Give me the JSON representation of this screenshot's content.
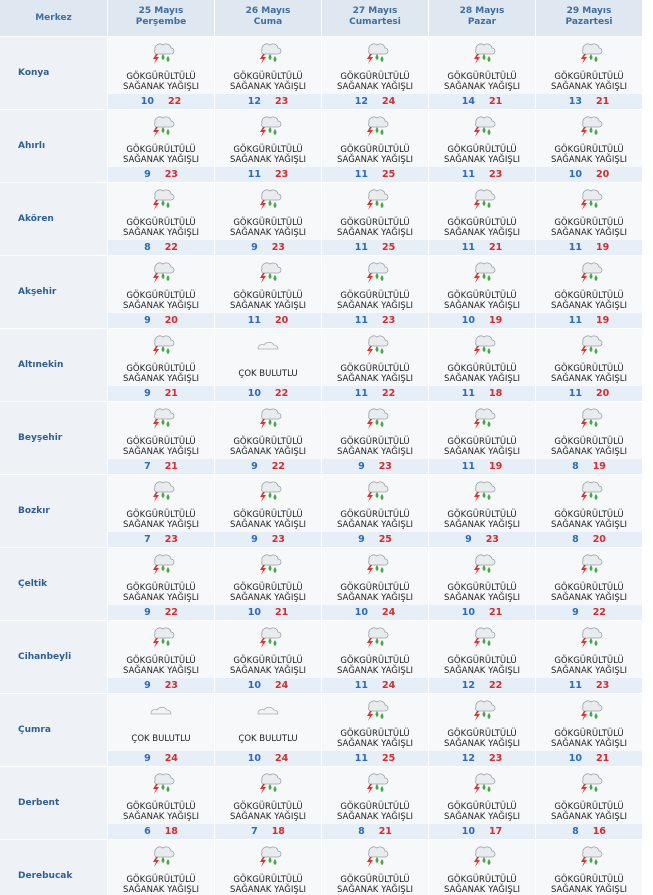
{
  "header": {
    "first": "Merkez",
    "days": [
      {
        "date": "25 Mayıs",
        "day": "Perşembe"
      },
      {
        "date": "26 Mayıs",
        "day": "Cuma"
      },
      {
        "date": "27 Mayıs",
        "day": "Cumartesi"
      },
      {
        "date": "28 Mayıs",
        "day": "Pazar"
      },
      {
        "date": "29 Mayıs",
        "day": "Pazartesi"
      }
    ]
  },
  "rows": [
    {
      "city": "Konya",
      "cells": [
        {
          "condition": "GÖKGÜRÜLTÜLÜ SAĞANAK YAĞIŞLI",
          "low": 10,
          "high": 22
        },
        {
          "condition": "GÖKGÜRÜLTÜLÜ SAĞANAK YAĞIŞLI",
          "low": 12,
          "high": 23
        },
        {
          "condition": "GÖKGÜRÜLTÜLÜ SAĞANAK YAĞIŞLI",
          "low": 12,
          "high": 24
        },
        {
          "condition": "GÖKGÜRÜLTÜLÜ SAĞANAK YAĞIŞLI",
          "low": 14,
          "high": 21
        },
        {
          "condition": "GÖKGÜRÜLTÜLÜ SAĞANAK YAĞIŞLI",
          "low": 13,
          "high": 21
        }
      ]
    },
    {
      "city": "Ahırlı",
      "cells": [
        {
          "condition": "GÖKGÜRÜLTÜLÜ SAĞANAK YAĞIŞLI",
          "low": 9,
          "high": 23
        },
        {
          "condition": "GÖKGÜRÜLTÜLÜ SAĞANAK YAĞIŞLI",
          "low": 11,
          "high": 23
        },
        {
          "condition": "GÖKGÜRÜLTÜLÜ SAĞANAK YAĞIŞLI",
          "low": 11,
          "high": 25
        },
        {
          "condition": "GÖKGÜRÜLTÜLÜ SAĞANAK YAĞIŞLI",
          "low": 11,
          "high": 23
        },
        {
          "condition": "GÖKGÜRÜLTÜLÜ SAĞANAK YAĞIŞLI",
          "low": 10,
          "high": 20
        }
      ]
    },
    {
      "city": "Akören",
      "cells": [
        {
          "condition": "GÖKGÜRÜLTÜLÜ SAĞANAK YAĞIŞLI",
          "low": 8,
          "high": 22
        },
        {
          "condition": "GÖKGÜRÜLTÜLÜ SAĞANAK YAĞIŞLI",
          "low": 9,
          "high": 23
        },
        {
          "condition": "GÖKGÜRÜLTÜLÜ SAĞANAK YAĞIŞLI",
          "low": 11,
          "high": 25
        },
        {
          "condition": "GÖKGÜRÜLTÜLÜ SAĞANAK YAĞIŞLI",
          "low": 11,
          "high": 21
        },
        {
          "condition": "GÖKGÜRÜLTÜLÜ SAĞANAK YAĞIŞLI",
          "low": 11,
          "high": 19
        }
      ]
    },
    {
      "city": "Akşehir",
      "cells": [
        {
          "condition": "GÖKGÜRÜLTÜLÜ SAĞANAK YAĞIŞLI",
          "low": 9,
          "high": 20
        },
        {
          "condition": "GÖKGÜRÜLTÜLÜ SAĞANAK YAĞIŞLI",
          "low": 11,
          "high": 20
        },
        {
          "condition": "GÖKGÜRÜLTÜLÜ SAĞANAK YAĞIŞLI",
          "low": 11,
          "high": 23
        },
        {
          "condition": "GÖKGÜRÜLTÜLÜ SAĞANAK YAĞIŞLI",
          "low": 10,
          "high": 19
        },
        {
          "condition": "GÖKGÜRÜLTÜLÜ SAĞANAK YAĞIŞLI",
          "low": 11,
          "high": 19
        }
      ]
    },
    {
      "city": "Altınekin",
      "cells": [
        {
          "condition": "GÖKGÜRÜLTÜLÜ SAĞANAK YAĞIŞLI",
          "low": 9,
          "high": 21
        },
        {
          "condition": "ÇOK BULUTLU",
          "low": 10,
          "high": 22
        },
        {
          "condition": "GÖKGÜRÜLTÜLÜ SAĞANAK YAĞIŞLI",
          "low": 11,
          "high": 22
        },
        {
          "condition": "GÖKGÜRÜLTÜLÜ SAĞANAK YAĞIŞLI",
          "low": 11,
          "high": 18
        },
        {
          "condition": "GÖKGÜRÜLTÜLÜ SAĞANAK YAĞIŞLI",
          "low": 11,
          "high": 20
        }
      ]
    },
    {
      "city": "Beyşehir",
      "cells": [
        {
          "condition": "GÖKGÜRÜLTÜLÜ SAĞANAK YAĞIŞLI",
          "low": 7,
          "high": 21
        },
        {
          "condition": "GÖKGÜRÜLTÜLÜ SAĞANAK YAĞIŞLI",
          "low": 9,
          "high": 22
        },
        {
          "condition": "GÖKGÜRÜLTÜLÜ SAĞANAK YAĞIŞLI",
          "low": 9,
          "high": 23
        },
        {
          "condition": "GÖKGÜRÜLTÜLÜ SAĞANAK YAĞIŞLI",
          "low": 11,
          "high": 19
        },
        {
          "condition": "GÖKGÜRÜLTÜLÜ SAĞANAK YAĞIŞLI",
          "low": 8,
          "high": 19
        }
      ]
    },
    {
      "city": "Bozkır",
      "cells": [
        {
          "condition": "GÖKGÜRÜLTÜLÜ SAĞANAK YAĞIŞLI",
          "low": 7,
          "high": 23
        },
        {
          "condition": "GÖKGÜRÜLTÜLÜ SAĞANAK YAĞIŞLI",
          "low": 9,
          "high": 23
        },
        {
          "condition": "GÖKGÜRÜLTÜLÜ SAĞANAK YAĞIŞLI",
          "low": 9,
          "high": 25
        },
        {
          "condition": "GÖKGÜRÜLTÜLÜ SAĞANAK YAĞIŞLI",
          "low": 9,
          "high": 23
        },
        {
          "condition": "GÖKGÜRÜLTÜLÜ SAĞANAK YAĞIŞLI",
          "low": 8,
          "high": 20
        }
      ]
    },
    {
      "city": "Çeltik",
      "cells": [
        {
          "condition": "GÖKGÜRÜLTÜLÜ SAĞANAK YAĞIŞLI",
          "low": 9,
          "high": 22
        },
        {
          "condition": "GÖKGÜRÜLTÜLÜ SAĞANAK YAĞIŞLI",
          "low": 10,
          "high": 21
        },
        {
          "condition": "GÖKGÜRÜLTÜLÜ SAĞANAK YAĞIŞLI",
          "low": 10,
          "high": 24
        },
        {
          "condition": "GÖKGÜRÜLTÜLÜ SAĞANAK YAĞIŞLI",
          "low": 10,
          "high": 21
        },
        {
          "condition": "GÖKGÜRÜLTÜLÜ SAĞANAK YAĞIŞLI",
          "low": 9,
          "high": 22
        }
      ]
    },
    {
      "city": "Cihanbeyli",
      "cells": [
        {
          "condition": "GÖKGÜRÜLTÜLÜ SAĞANAK YAĞIŞLI",
          "low": 9,
          "high": 23
        },
        {
          "condition": "GÖKGÜRÜLTÜLÜ SAĞANAK YAĞIŞLI",
          "low": 10,
          "high": 24
        },
        {
          "condition": "GÖKGÜRÜLTÜLÜ SAĞANAK YAĞIŞLI",
          "low": 11,
          "high": 24
        },
        {
          "condition": "GÖKGÜRÜLTÜLÜ SAĞANAK YAĞIŞLI",
          "low": 12,
          "high": 22
        },
        {
          "condition": "GÖKGÜRÜLTÜLÜ SAĞANAK YAĞIŞLI",
          "low": 11,
          "high": 23
        }
      ]
    },
    {
      "city": "Çumra",
      "cells": [
        {
          "condition": "ÇOK BULUTLU",
          "low": 9,
          "high": 24
        },
        {
          "condition": "ÇOK BULUTLU",
          "low": 10,
          "high": 24
        },
        {
          "condition": "GÖKGÜRÜLTÜLÜ SAĞANAK YAĞIŞLI",
          "low": 11,
          "high": 25
        },
        {
          "condition": "GÖKGÜRÜLTÜLÜ SAĞANAK YAĞIŞLI",
          "low": 12,
          "high": 23
        },
        {
          "condition": "GÖKGÜRÜLTÜLÜ SAĞANAK YAĞIŞLI",
          "low": 10,
          "high": 21
        }
      ]
    },
    {
      "city": "Derbent",
      "cells": [
        {
          "condition": "GÖKGÜRÜLTÜLÜ SAĞANAK YAĞIŞLI",
          "low": 6,
          "high": 18
        },
        {
          "condition": "GÖKGÜRÜLTÜLÜ SAĞANAK YAĞIŞLI",
          "low": 7,
          "high": 18
        },
        {
          "condition": "GÖKGÜRÜLTÜLÜ SAĞANAK YAĞIŞLI",
          "low": 8,
          "high": 21
        },
        {
          "condition": "GÖKGÜRÜLTÜLÜ SAĞANAK YAĞIŞLI",
          "low": 10,
          "high": 17
        },
        {
          "condition": "GÖKGÜRÜLTÜLÜ SAĞANAK YAĞIŞLI",
          "low": 8,
          "high": 16
        }
      ]
    },
    {
      "city": "Derebucak",
      "cells": [
        {
          "condition": "GÖKGÜRÜLTÜLÜ SAĞANAK YAĞIŞLI"
        },
        {
          "condition": "GÖKGÜRÜLTÜLÜ SAĞANAK YAĞIŞLI"
        },
        {
          "condition": "GÖKGÜRÜLTÜLÜ SAĞANAK YAĞIŞLI"
        },
        {
          "condition": "GÖKGÜRÜLTÜLÜ SAĞANAK YAĞIŞLI"
        },
        {
          "condition": "GÖKGÜRÜLTÜLÜ SAĞANAK YAĞIŞLI"
        }
      ]
    }
  ]
}
